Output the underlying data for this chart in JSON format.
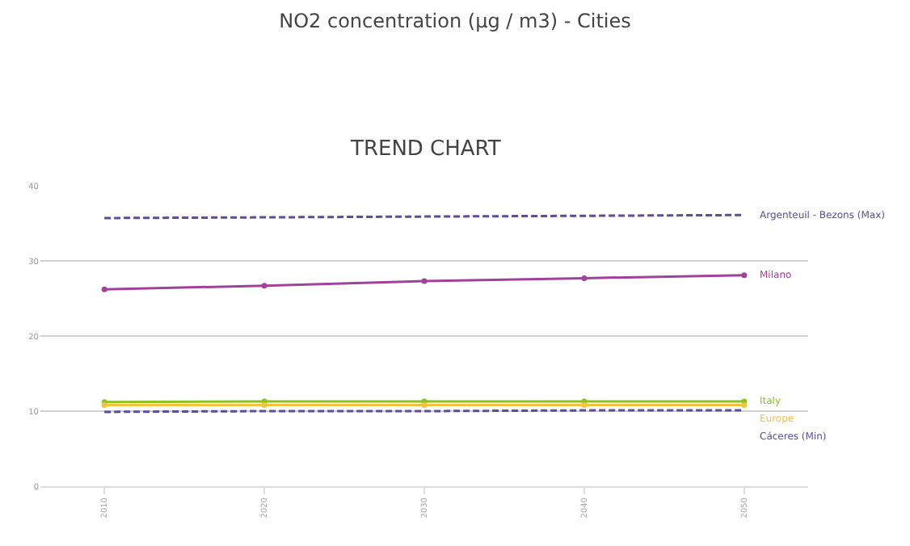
{
  "chart_data": {
    "type": "line",
    "title": "NO2 concentration (µg / m3) - Cities",
    "subtitle": "TREND CHART",
    "x": [
      2010,
      2020,
      2030,
      2040,
      2050
    ],
    "series": [
      {
        "name": "Argenteuil - Bezons (Max)",
        "color": "#5b4e96",
        "values": [
          35.7,
          35.8,
          35.9,
          36.0,
          36.1
        ],
        "line_style": "dashed",
        "marker": "none"
      },
      {
        "name": "Milano",
        "color": "#a0419a",
        "values": [
          26.2,
          26.7,
          27.3,
          27.7,
          28.1
        ],
        "line_style": "solid",
        "marker": "circle"
      },
      {
        "name": "Italy",
        "color": "#8dc21f",
        "values": [
          11.2,
          11.3,
          11.3,
          11.3,
          11.3
        ],
        "line_style": "solid",
        "marker": "circle"
      },
      {
        "name": "Europe",
        "color": "#f5c242",
        "values": [
          10.8,
          10.8,
          10.8,
          10.8,
          10.8
        ],
        "line_style": "solid",
        "marker": "circle"
      },
      {
        "name": "Cáceres (Min)",
        "color": "#5b4e96",
        "values": [
          9.9,
          10.0,
          10.0,
          10.1,
          10.1
        ],
        "line_style": "dashed",
        "marker": "none"
      }
    ],
    "xlim": [
      2006,
      2054
    ],
    "xticks": [
      2010,
      2020,
      2030,
      2040,
      2050
    ],
    "ylim": [
      0,
      40
    ],
    "yticks": [
      0,
      10,
      20,
      30,
      40
    ],
    "grid": "y",
    "legend": false
  }
}
